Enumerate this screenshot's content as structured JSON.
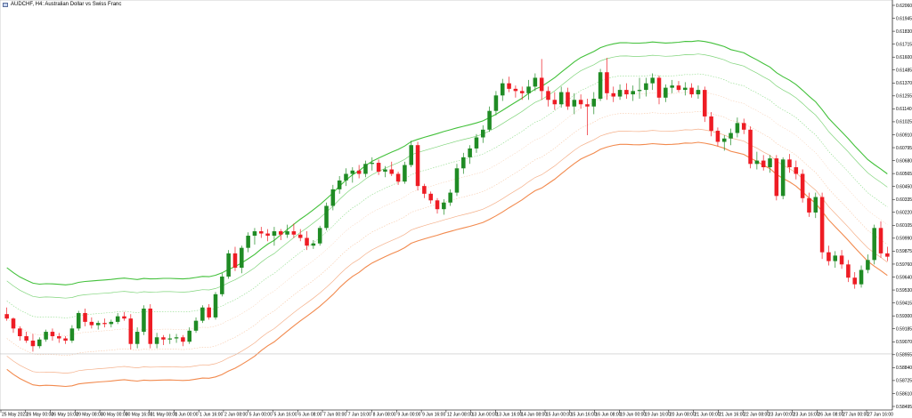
{
  "window": {
    "title": "AUDCHF, H4:  Australian Dollar vs Swiss Franc",
    "icon": "chart-window-icon"
  },
  "colors": {
    "bull": "#1f8b24",
    "bear": "#ee1c24",
    "upper_band_outer": "#43c13b",
    "upper_band_inner": "#7fd47a",
    "upper_band_mid": "#8fdc8a",
    "lower_band_outer": "#f28a4e",
    "lower_band_inner": "#f5b08a",
    "lower_band_mid": "#f7c8a8",
    "current_price_line": "#c0c0c0"
  },
  "chart_data": {
    "type": "candlestick",
    "symbol": "AUDCHF",
    "timeframe": "H4",
    "ylim": [
      0.58396,
      0.6206
    ],
    "y_ticks": [
      "0.62060",
      "0.61945",
      "0.61830",
      "0.61715",
      "0.61600",
      "0.61485",
      "0.61370",
      "0.61255",
      "0.61140",
      "0.61025",
      "0.60910",
      "0.60795",
      "0.60680",
      "0.60565",
      "0.60450",
      "0.60335",
      "0.60220",
      "0.60105",
      "0.59990",
      "0.59875",
      "0.59760",
      "0.59640",
      "0.59530",
      "0.59415",
      "0.59300",
      "0.59185",
      "0.59070",
      "0.58955",
      "0.58840",
      "0.58725",
      "0.58610",
      "0.58495"
    ],
    "current_price": 0.5888,
    "x_ticks": [
      "25 May 2023",
      "26 May 00:00",
      "26 May 16:00",
      "29 May 08:00",
      "30 May 00:00",
      "30 May 16:00",
      "31 May 08:00",
      "1 Jun 00:00",
      "1 Jun 16:00",
      "2 Jun 08:00",
      "5 Jun 00:00",
      "5 Jun 16:00",
      "6 Jun 08:00",
      "7 Jun 00:00",
      "7 Jun 16:00",
      "8 Jun 08:00",
      "9 Jun 00:00",
      "9 Jun 16:00",
      "12 Jun 08:00",
      "13 Jun 00:00",
      "13 Jun 16:00",
      "14 Jun 08:00",
      "15 Jun 00:00",
      "15 Jun 16:00",
      "16 Jun 08:00",
      "19 Jun 00:00",
      "19 Jun 16:00",
      "20 Jun 08:00",
      "21 Jun 00:00",
      "21 Jun 16:00",
      "22 Jun 08:00",
      "23 Jun 00:00",
      "23 Jun 16:00",
      "26 Jun 08:00",
      "27 Jun 00:00",
      "27 Jun 16:00"
    ],
    "ohlc": [
      [
        0.5924,
        0.593,
        0.5918,
        0.592
      ],
      [
        0.592,
        0.5921,
        0.5907,
        0.5911
      ],
      [
        0.5911,
        0.5913,
        0.59,
        0.5904
      ],
      [
        0.5904,
        0.5908,
        0.5898,
        0.59
      ],
      [
        0.59,
        0.5906,
        0.589,
        0.5895
      ],
      [
        0.5895,
        0.5903,
        0.5893,
        0.5901
      ],
      [
        0.5901,
        0.591,
        0.5899,
        0.5908
      ],
      [
        0.5908,
        0.5911,
        0.59,
        0.5904
      ],
      [
        0.5904,
        0.5907,
        0.5898,
        0.5902
      ],
      [
        0.5902,
        0.5904,
        0.5897,
        0.59
      ],
      [
        0.59,
        0.5914,
        0.5898,
        0.5911
      ],
      [
        0.5911,
        0.5927,
        0.5909,
        0.5925
      ],
      [
        0.5925,
        0.5929,
        0.5913,
        0.5917
      ],
      [
        0.5917,
        0.5921,
        0.5911,
        0.5914
      ],
      [
        0.5914,
        0.5918,
        0.591,
        0.5916
      ],
      [
        0.5916,
        0.592,
        0.5912,
        0.5915
      ],
      [
        0.5915,
        0.5919,
        0.5912,
        0.5917
      ],
      [
        0.5917,
        0.5925,
        0.5915,
        0.5922
      ],
      [
        0.5922,
        0.5926,
        0.5918,
        0.592
      ],
      [
        0.592,
        0.5924,
        0.5892,
        0.5897
      ],
      [
        0.5897,
        0.5912,
        0.5893,
        0.5908
      ],
      [
        0.5908,
        0.5932,
        0.5905,
        0.5929
      ],
      [
        0.5929,
        0.5933,
        0.5893,
        0.5897
      ],
      [
        0.5897,
        0.5907,
        0.5893,
        0.5903
      ],
      [
        0.5903,
        0.5905,
        0.5896,
        0.5901
      ],
      [
        0.5901,
        0.5906,
        0.5897,
        0.5902
      ],
      [
        0.5902,
        0.5906,
        0.5898,
        0.5903
      ],
      [
        0.5903,
        0.5905,
        0.5895,
        0.5899
      ],
      [
        0.5899,
        0.5912,
        0.5897,
        0.5909
      ],
      [
        0.5909,
        0.5921,
        0.5907,
        0.5918
      ],
      [
        0.5918,
        0.5932,
        0.5916,
        0.593
      ],
      [
        0.593,
        0.5933,
        0.5919,
        0.5921
      ],
      [
        0.5921,
        0.5944,
        0.5919,
        0.5942
      ],
      [
        0.5942,
        0.5961,
        0.594,
        0.5958
      ],
      [
        0.5958,
        0.5982,
        0.5956,
        0.5979
      ],
      [
        0.5979,
        0.5985,
        0.5963,
        0.5966
      ],
      [
        0.5966,
        0.5986,
        0.5961,
        0.5984
      ],
      [
        0.5984,
        0.5998,
        0.598,
        0.5995
      ],
      [
        0.5995,
        0.6002,
        0.5987,
        0.5999
      ],
      [
        0.5999,
        0.6003,
        0.5993,
        0.5997
      ],
      [
        0.5997,
        0.6001,
        0.599,
        0.5995
      ],
      [
        0.5995,
        0.6003,
        0.5986,
        0.5999
      ],
      [
        0.5999,
        0.6001,
        0.5991,
        0.5996
      ],
      [
        0.5996,
        0.6005,
        0.5993,
        0.5999
      ],
      [
        0.5999,
        0.6006,
        0.5993,
        0.5996
      ],
      [
        0.5996,
        0.6001,
        0.599,
        0.5993
      ],
      [
        0.5993,
        0.5999,
        0.5982,
        0.5986
      ],
      [
        0.5986,
        0.5991,
        0.5983,
        0.5988
      ],
      [
        0.5988,
        0.6004,
        0.5986,
        0.6002
      ],
      [
        0.6002,
        0.6025,
        0.6,
        0.6022
      ],
      [
        0.6022,
        0.6041,
        0.6018,
        0.6037
      ],
      [
        0.6037,
        0.6049,
        0.6033,
        0.6045
      ],
      [
        0.6045,
        0.6056,
        0.604,
        0.6051
      ],
      [
        0.6051,
        0.6057,
        0.6043,
        0.6054
      ],
      [
        0.6054,
        0.6059,
        0.6047,
        0.6051
      ],
      [
        0.6051,
        0.6063,
        0.6048,
        0.606
      ],
      [
        0.606,
        0.6066,
        0.6054,
        0.6061
      ],
      [
        0.6061,
        0.6064,
        0.605,
        0.6053
      ],
      [
        0.6053,
        0.6058,
        0.6048,
        0.6055
      ],
      [
        0.6055,
        0.6062,
        0.6049,
        0.6051
      ],
      [
        0.6051,
        0.6053,
        0.6041,
        0.6044
      ],
      [
        0.6044,
        0.6062,
        0.6042,
        0.6059
      ],
      [
        0.6059,
        0.6081,
        0.6057,
        0.6077
      ],
      [
        0.6077,
        0.608,
        0.6036,
        0.604
      ],
      [
        0.604,
        0.6042,
        0.6029,
        0.6033
      ],
      [
        0.6033,
        0.6035,
        0.6024,
        0.6027
      ],
      [
        0.6027,
        0.6029,
        0.6015,
        0.6019
      ],
      [
        0.6019,
        0.6028,
        0.6014,
        0.6025
      ],
      [
        0.6025,
        0.6037,
        0.6022,
        0.6034
      ],
      [
        0.6034,
        0.606,
        0.6031,
        0.6056
      ],
      [
        0.6056,
        0.607,
        0.6051,
        0.6066
      ],
      [
        0.6066,
        0.6077,
        0.606,
        0.6074
      ],
      [
        0.6074,
        0.6087,
        0.607,
        0.6084
      ],
      [
        0.6084,
        0.6095,
        0.6079,
        0.6091
      ],
      [
        0.6091,
        0.6112,
        0.6089,
        0.6108
      ],
      [
        0.6108,
        0.6126,
        0.6104,
        0.6122
      ],
      [
        0.6122,
        0.6137,
        0.6117,
        0.6133
      ],
      [
        0.6133,
        0.6139,
        0.6125,
        0.6128
      ],
      [
        0.6128,
        0.6131,
        0.612,
        0.6126
      ],
      [
        0.6126,
        0.613,
        0.6118,
        0.6124
      ],
      [
        0.6124,
        0.6136,
        0.6118,
        0.613
      ],
      [
        0.613,
        0.6142,
        0.6126,
        0.6138
      ],
      [
        0.6138,
        0.6155,
        0.6118,
        0.6126
      ],
      [
        0.6126,
        0.613,
        0.6112,
        0.6118
      ],
      [
        0.6118,
        0.6125,
        0.6109,
        0.6114
      ],
      [
        0.6114,
        0.613,
        0.6111,
        0.6125
      ],
      [
        0.6125,
        0.6129,
        0.6109,
        0.6112
      ],
      [
        0.6112,
        0.6124,
        0.6105,
        0.6118
      ],
      [
        0.6118,
        0.6123,
        0.611,
        0.6114
      ],
      [
        0.6114,
        0.6119,
        0.6086,
        0.6112
      ],
      [
        0.6112,
        0.6125,
        0.6105,
        0.6119
      ],
      [
        0.6119,
        0.6146,
        0.6117,
        0.6143
      ],
      [
        0.6143,
        0.6156,
        0.6118,
        0.6124
      ],
      [
        0.6124,
        0.613,
        0.6116,
        0.6121
      ],
      [
        0.6121,
        0.6132,
        0.6118,
        0.6127
      ],
      [
        0.6127,
        0.6133,
        0.6119,
        0.6123
      ],
      [
        0.6123,
        0.6131,
        0.6117,
        0.6126
      ],
      [
        0.6126,
        0.6138,
        0.6119,
        0.6127
      ],
      [
        0.6127,
        0.6138,
        0.6121,
        0.6133
      ],
      [
        0.6133,
        0.6142,
        0.6127,
        0.6138
      ],
      [
        0.6138,
        0.614,
        0.6114,
        0.612
      ],
      [
        0.612,
        0.6132,
        0.6116,
        0.6129
      ],
      [
        0.6129,
        0.6136,
        0.6124,
        0.6131
      ],
      [
        0.6131,
        0.6135,
        0.6125,
        0.6127
      ],
      [
        0.6127,
        0.6134,
        0.6122,
        0.6129
      ],
      [
        0.6129,
        0.6133,
        0.612,
        0.6123
      ],
      [
        0.6123,
        0.6131,
        0.6119,
        0.6127
      ],
      [
        0.6127,
        0.613,
        0.6098,
        0.6103
      ],
      [
        0.6103,
        0.6107,
        0.6085,
        0.609
      ],
      [
        0.609,
        0.6093,
        0.6076,
        0.608
      ],
      [
        0.608,
        0.6086,
        0.6072,
        0.6083
      ],
      [
        0.6083,
        0.6092,
        0.6077,
        0.6088
      ],
      [
        0.6088,
        0.6102,
        0.6084,
        0.6097
      ],
      [
        0.6097,
        0.6101,
        0.6087,
        0.6091
      ],
      [
        0.6091,
        0.6094,
        0.6056,
        0.606
      ],
      [
        0.606,
        0.6071,
        0.6055,
        0.6063
      ],
      [
        0.6063,
        0.6068,
        0.6054,
        0.6057
      ],
      [
        0.6057,
        0.6068,
        0.6052,
        0.6065
      ],
      [
        0.6065,
        0.6068,
        0.6027,
        0.6031
      ],
      [
        0.6031,
        0.6066,
        0.6028,
        0.6064
      ],
      [
        0.6064,
        0.6069,
        0.6052,
        0.6057
      ],
      [
        0.6057,
        0.6063,
        0.6046,
        0.6051
      ],
      [
        0.6051,
        0.6055,
        0.6025,
        0.6029
      ],
      [
        0.6029,
        0.6034,
        0.6012,
        0.6016
      ],
      [
        0.6016,
        0.6034,
        0.6011,
        0.603
      ],
      [
        0.603,
        0.6034,
        0.5974,
        0.598
      ],
      [
        0.598,
        0.5986,
        0.5968,
        0.5972
      ],
      [
        0.5972,
        0.5981,
        0.5966,
        0.5977
      ],
      [
        0.5977,
        0.5982,
        0.5965,
        0.5969
      ],
      [
        0.5969,
        0.5973,
        0.5953,
        0.5957
      ],
      [
        0.5957,
        0.5962,
        0.5947,
        0.5951
      ],
      [
        0.5951,
        0.5968,
        0.5948,
        0.5964
      ],
      [
        0.5964,
        0.5978,
        0.5961,
        0.5973
      ],
      [
        0.5973,
        0.6005,
        0.5969,
        0.6002
      ],
      [
        0.6002,
        0.6008,
        0.5975,
        0.5979
      ],
      [
        0.5979,
        0.5985,
        0.5972,
        0.5976
      ]
    ]
  }
}
